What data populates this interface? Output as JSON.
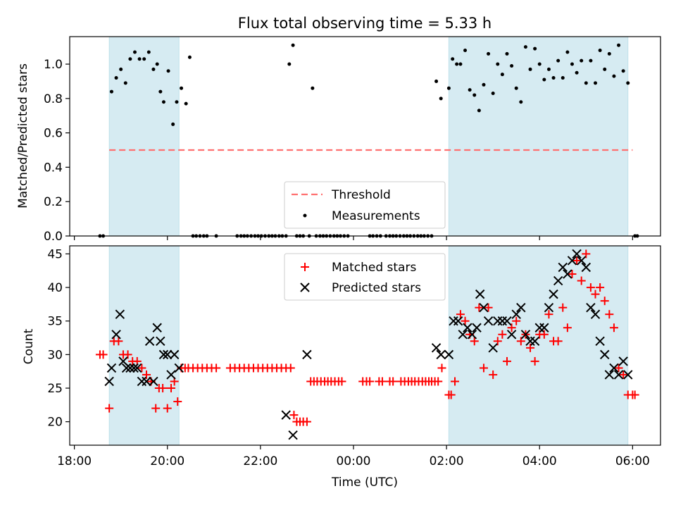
{
  "figure": {
    "title": "Flux total observing time = 5.33 h"
  },
  "chart_data": [
    {
      "type": "scatter",
      "panel": "top",
      "ylabel": "Matched/Predicted stars",
      "xlabel": "",
      "xlim": [
        -0.1,
        12.6
      ],
      "ylim": [
        0.0,
        1.16
      ],
      "yticks": [
        0.0,
        0.2,
        0.4,
        0.6,
        0.8,
        1.0
      ],
      "ytick_labels": [
        "0.0",
        "0.2",
        "0.4",
        "0.6",
        "0.8",
        "1.0"
      ],
      "xticks": [
        0,
        2,
        4,
        6,
        8,
        10,
        12
      ],
      "grid": false,
      "legend_location": "lower center",
      "shaded_spans": [
        [
          0.75,
          2.25
        ],
        [
          8.05,
          11.9
        ]
      ],
      "threshold": {
        "name": "Threshold",
        "value": 0.5,
        "x": [
          0.75,
          12.0
        ],
        "color": "#ff7070",
        "style": "dashed"
      },
      "series": [
        {
          "name": "Measurements",
          "marker": "dot",
          "color": "#000000",
          "x": [
            0.55,
            0.62,
            0.8,
            0.9,
            1.0,
            1.1,
            1.2,
            1.3,
            1.4,
            1.5,
            1.6,
            1.7,
            1.78,
            1.85,
            1.92,
            2.02,
            2.12,
            2.2,
            2.3,
            2.4,
            2.48,
            2.55,
            2.62,
            2.7,
            2.78,
            2.85,
            3.05,
            3.5,
            3.58,
            3.65,
            3.72,
            3.8,
            3.88,
            3.95,
            4.02,
            4.1,
            4.18,
            4.25,
            4.32,
            4.4,
            4.47,
            4.55,
            4.62,
            4.7,
            4.78,
            4.85,
            4.92,
            5.05,
            5.12,
            5.2,
            5.28,
            5.35,
            5.42,
            5.5,
            5.58,
            5.65,
            5.72,
            5.8,
            5.88,
            6.35,
            6.42,
            6.5,
            6.58,
            6.7,
            6.78,
            6.85,
            6.92,
            7.0,
            7.08,
            7.15,
            7.22,
            7.3,
            7.38,
            7.45,
            7.52,
            7.6,
            7.68,
            7.78,
            7.88,
            8.05,
            8.13,
            8.22,
            8.3,
            8.4,
            8.5,
            8.6,
            8.7,
            8.8,
            8.9,
            9.0,
            9.1,
            9.2,
            9.3,
            9.4,
            9.5,
            9.6,
            9.7,
            9.8,
            9.9,
            10.0,
            10.1,
            10.2,
            10.3,
            10.4,
            10.5,
            10.6,
            10.7,
            10.8,
            10.9,
            11.0,
            11.1,
            11.2,
            11.3,
            11.4,
            11.5,
            11.6,
            11.7,
            11.8,
            11.9,
            12.05,
            12.1
          ],
          "y": [
            0,
            0,
            0.84,
            0.92,
            0.97,
            0.89,
            1.03,
            1.07,
            1.03,
            1.03,
            1.07,
            0.97,
            1.0,
            0.84,
            0.78,
            0.96,
            0.65,
            0.78,
            0.86,
            0.77,
            1.04,
            0,
            0,
            0,
            0,
            0,
            0,
            0,
            0,
            0,
            0,
            0,
            0,
            0,
            0,
            0,
            0,
            0,
            0,
            0,
            0,
            0,
            1.0,
            1.11,
            0,
            0,
            0,
            0,
            0.86,
            0,
            0,
            0,
            0,
            0,
            0,
            0,
            0,
            0,
            0,
            0,
            0,
            0,
            0,
            0,
            0,
            0,
            0,
            0,
            0,
            0,
            0,
            0,
            0,
            0,
            0,
            0,
            0,
            0.9,
            0.8,
            0.86,
            1.03,
            1.0,
            1.0,
            1.08,
            0.85,
            0.82,
            0.73,
            0.88,
            1.06,
            0.83,
            1.0,
            0.94,
            1.06,
            0.99,
            0.86,
            0.78,
            1.1,
            0.97,
            1.09,
            1.0,
            0.91,
            0.97,
            0.92,
            1.02,
            0.92,
            1.07,
            1.0,
            0.95,
            1.02,
            0.89,
            1.02,
            0.89,
            1.08,
            0.97,
            1.06,
            0.93,
            1.11,
            0.96,
            0.89,
            0,
            0
          ]
        }
      ]
    },
    {
      "type": "scatter",
      "panel": "bottom",
      "ylabel": "Count",
      "xlabel": "Time (UTC)",
      "xlim": [
        -0.1,
        12.6
      ],
      "ylim": [
        16.5,
        46.2
      ],
      "yticks": [
        20,
        25,
        30,
        35,
        40,
        45
      ],
      "ytick_labels": [
        "20",
        "25",
        "30",
        "35",
        "40",
        "45"
      ],
      "xticks": [
        0,
        2,
        4,
        6,
        8,
        10,
        12
      ],
      "xtick_labels": [
        "18:00",
        "20:00",
        "22:00",
        "00:00",
        "02:00",
        "04:00",
        "06:00"
      ],
      "grid": false,
      "legend_location": "upper center",
      "shaded_spans": [
        [
          0.75,
          2.25
        ],
        [
          8.05,
          11.9
        ]
      ],
      "series": [
        {
          "name": "Matched stars",
          "marker": "plus",
          "color": "#ff0000",
          "x": [
            0.55,
            0.62,
            0.75,
            0.85,
            0.95,
            1.05,
            1.15,
            1.25,
            1.35,
            1.45,
            1.55,
            1.65,
            1.75,
            1.82,
            1.9,
            2.0,
            2.08,
            2.15,
            2.22,
            2.3,
            2.38,
            2.45,
            2.55,
            2.65,
            2.75,
            2.85,
            2.95,
            3.05,
            3.35,
            3.45,
            3.55,
            3.65,
            3.75,
            3.85,
            3.95,
            4.05,
            4.15,
            4.25,
            4.35,
            4.45,
            4.55,
            4.65,
            4.72,
            4.78,
            4.85,
            4.92,
            5.0,
            5.08,
            5.15,
            5.22,
            5.3,
            5.38,
            5.45,
            5.52,
            5.6,
            5.68,
            5.75,
            6.2,
            6.28,
            6.35,
            6.55,
            6.62,
            6.78,
            6.85,
            7.02,
            7.1,
            7.18,
            7.25,
            7.32,
            7.4,
            7.48,
            7.55,
            7.62,
            7.68,
            7.75,
            7.82,
            7.9,
            8.05,
            8.1,
            8.18,
            8.3,
            8.4,
            8.5,
            8.6,
            8.7,
            8.8,
            8.9,
            9.0,
            9.1,
            9.2,
            9.3,
            9.4,
            9.5,
            9.6,
            9.7,
            9.8,
            9.9,
            10.0,
            10.1,
            10.2,
            10.3,
            10.4,
            10.5,
            10.6,
            10.7,
            10.8,
            10.9,
            11.0,
            11.1,
            11.2,
            11.3,
            11.4,
            11.5,
            11.6,
            11.7,
            11.8,
            11.9,
            12.0,
            12.05
          ],
          "y": [
            30,
            30,
            22,
            32,
            32,
            30,
            30,
            29,
            29,
            28,
            27,
            26,
            22,
            25,
            25,
            22,
            25,
            26,
            23,
            28,
            28,
            28,
            28,
            28,
            28,
            28,
            28,
            28,
            28,
            28,
            28,
            28,
            28,
            28,
            28,
            28,
            28,
            28,
            28,
            28,
            28,
            28,
            21,
            20,
            20,
            20,
            20,
            26,
            26,
            26,
            26,
            26,
            26,
            26,
            26,
            26,
            26,
            26,
            26,
            26,
            26,
            26,
            26,
            26,
            26,
            26,
            26,
            26,
            26,
            26,
            26,
            26,
            26,
            26,
            26,
            26,
            28,
            24,
            24,
            26,
            36,
            35,
            33,
            32,
            37,
            28,
            37,
            27,
            32,
            33,
            29,
            34,
            35,
            32,
            33,
            31,
            29,
            33,
            33,
            36,
            32,
            32,
            37,
            34,
            42,
            44,
            41,
            45,
            40,
            39,
            40,
            38,
            36,
            34,
            28,
            27,
            24,
            24,
            24
          ],
          "note_x": ""
        },
        {
          "name": "Predicted stars",
          "marker": "x",
          "color": "#000000",
          "x": [
            0.75,
            0.8,
            0.9,
            0.98,
            1.05,
            1.12,
            1.2,
            1.28,
            1.35,
            1.45,
            1.55,
            1.62,
            1.7,
            1.78,
            1.85,
            1.92,
            2.0,
            2.08,
            2.15,
            2.25,
            4.55,
            4.7,
            5.0,
            7.78,
            7.88,
            8.05,
            8.15,
            8.25,
            8.35,
            8.45,
            8.55,
            8.65,
            8.72,
            8.8,
            8.9,
            9.0,
            9.1,
            9.2,
            9.3,
            9.4,
            9.5,
            9.6,
            9.7,
            9.8,
            9.9,
            10.0,
            10.1,
            10.2,
            10.3,
            10.4,
            10.5,
            10.6,
            10.7,
            10.8,
            10.9,
            11.0,
            11.1,
            11.2,
            11.3,
            11.4,
            11.5,
            11.6,
            11.7,
            11.8,
            11.9
          ],
          "y": [
            26,
            28,
            33,
            36,
            29,
            28,
            28,
            28,
            28,
            26,
            26,
            32,
            26,
            34,
            32,
            30,
            30,
            27,
            30,
            28,
            21,
            18,
            30,
            31,
            30,
            30,
            35,
            35,
            33,
            34,
            33,
            34,
            39,
            37,
            35,
            31,
            35,
            35,
            35,
            33,
            36,
            37,
            33,
            32,
            32,
            34,
            34,
            37,
            39,
            41,
            43,
            42,
            44,
            45,
            44,
            43,
            37,
            36,
            32,
            30,
            27,
            28,
            27,
            29,
            27
          ],
          "note_x": ""
        }
      ]
    }
  ]
}
